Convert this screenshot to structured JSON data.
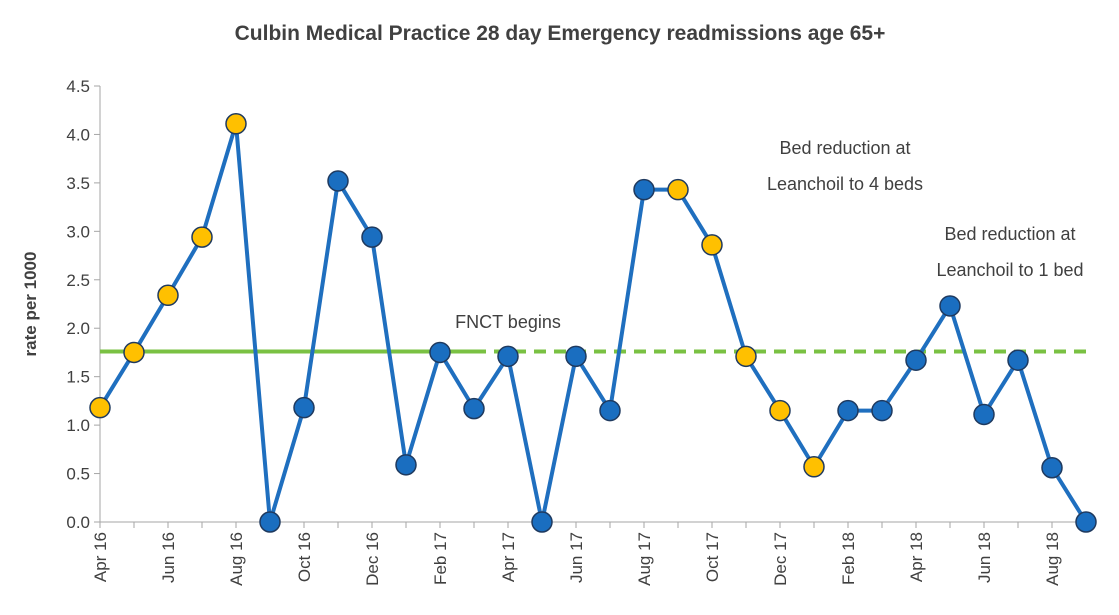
{
  "chart_data": {
    "type": "line",
    "title": "Culbin Medical Practice 28 day Emergency readmissions age 65+",
    "y_label": "rate per 1000",
    "categories": [
      "Apr 16",
      null,
      "Jun 16",
      null,
      "Aug 16",
      null,
      "Oct 16",
      null,
      "Dec 16",
      null,
      "Feb 17",
      null,
      "Apr 17",
      null,
      "Jun 17",
      null,
      "Aug 17",
      null,
      "Oct 17",
      null,
      "Dec 17",
      null,
      "Feb 18",
      null,
      "Apr 18",
      null,
      "Jun 18",
      null,
      "Aug 18",
      null
    ],
    "series": [
      {
        "color": "#1f6fbf",
        "values": [
          1.18,
          1.75,
          2.34,
          2.94,
          4.11,
          0,
          1.18,
          3.52,
          2.94,
          0.59,
          1.75,
          1.17,
          1.71,
          0,
          1.71,
          1.15,
          3.43,
          3.43,
          2.86,
          1.71,
          1.15,
          0.57,
          1.15,
          1.15,
          1.67,
          2.23,
          1.11,
          1.67,
          0.56,
          0
        ],
        "point_colors": [
          "#ffc000",
          "#ffc000",
          "#ffc000",
          "#ffc000",
          "#ffc000",
          "#1a6ec0",
          "#1a6ec0",
          "#1a6ec0",
          "#1a6ec0",
          "#1a6ec0",
          "#1a6ec0",
          "#1a6ec0",
          "#1a6ec0",
          "#1a6ec0",
          "#1a6ec0",
          "#1a6ec0",
          "#1a6ec0",
          "#ffc000",
          "#ffc000",
          "#ffc000",
          "#ffc000",
          "#ffc000",
          "#1a6ec0",
          "#1a6ec0",
          "#1a6ec0",
          "#1a6ec0",
          "#1a6ec0",
          "#1a6ec0",
          "#1a6ec0",
          "#1a6ec0"
        ]
      }
    ],
    "reference_lines": [
      {
        "value": 1.76,
        "from": 0,
        "to": 11,
        "style": "solid",
        "color": "#7ac143"
      },
      {
        "value": 1.76,
        "from": 11,
        "to": 29,
        "style": "dashed",
        "color": "#7ac143"
      }
    ],
    "ylim": [
      0,
      4.5
    ],
    "yticks": [
      {
        "value": 0,
        "label": "0.0"
      },
      0.5,
      {
        "value": 1,
        "label": "1.0"
      },
      1.5,
      {
        "value": 2,
        "label": "2.0"
      },
      2.5,
      {
        "value": 3,
        "label": "3.0"
      },
      3.5,
      {
        "value": 4,
        "label": "4.0"
      },
      4.5
    ],
    "annotations": [
      [
        "FNCT begins"
      ],
      [
        "Bed reduction at",
        "Leanchoil to 4 beds"
      ],
      [
        "Bed reduction at",
        "Leanchoil to 1 bed"
      ]
    ]
  }
}
